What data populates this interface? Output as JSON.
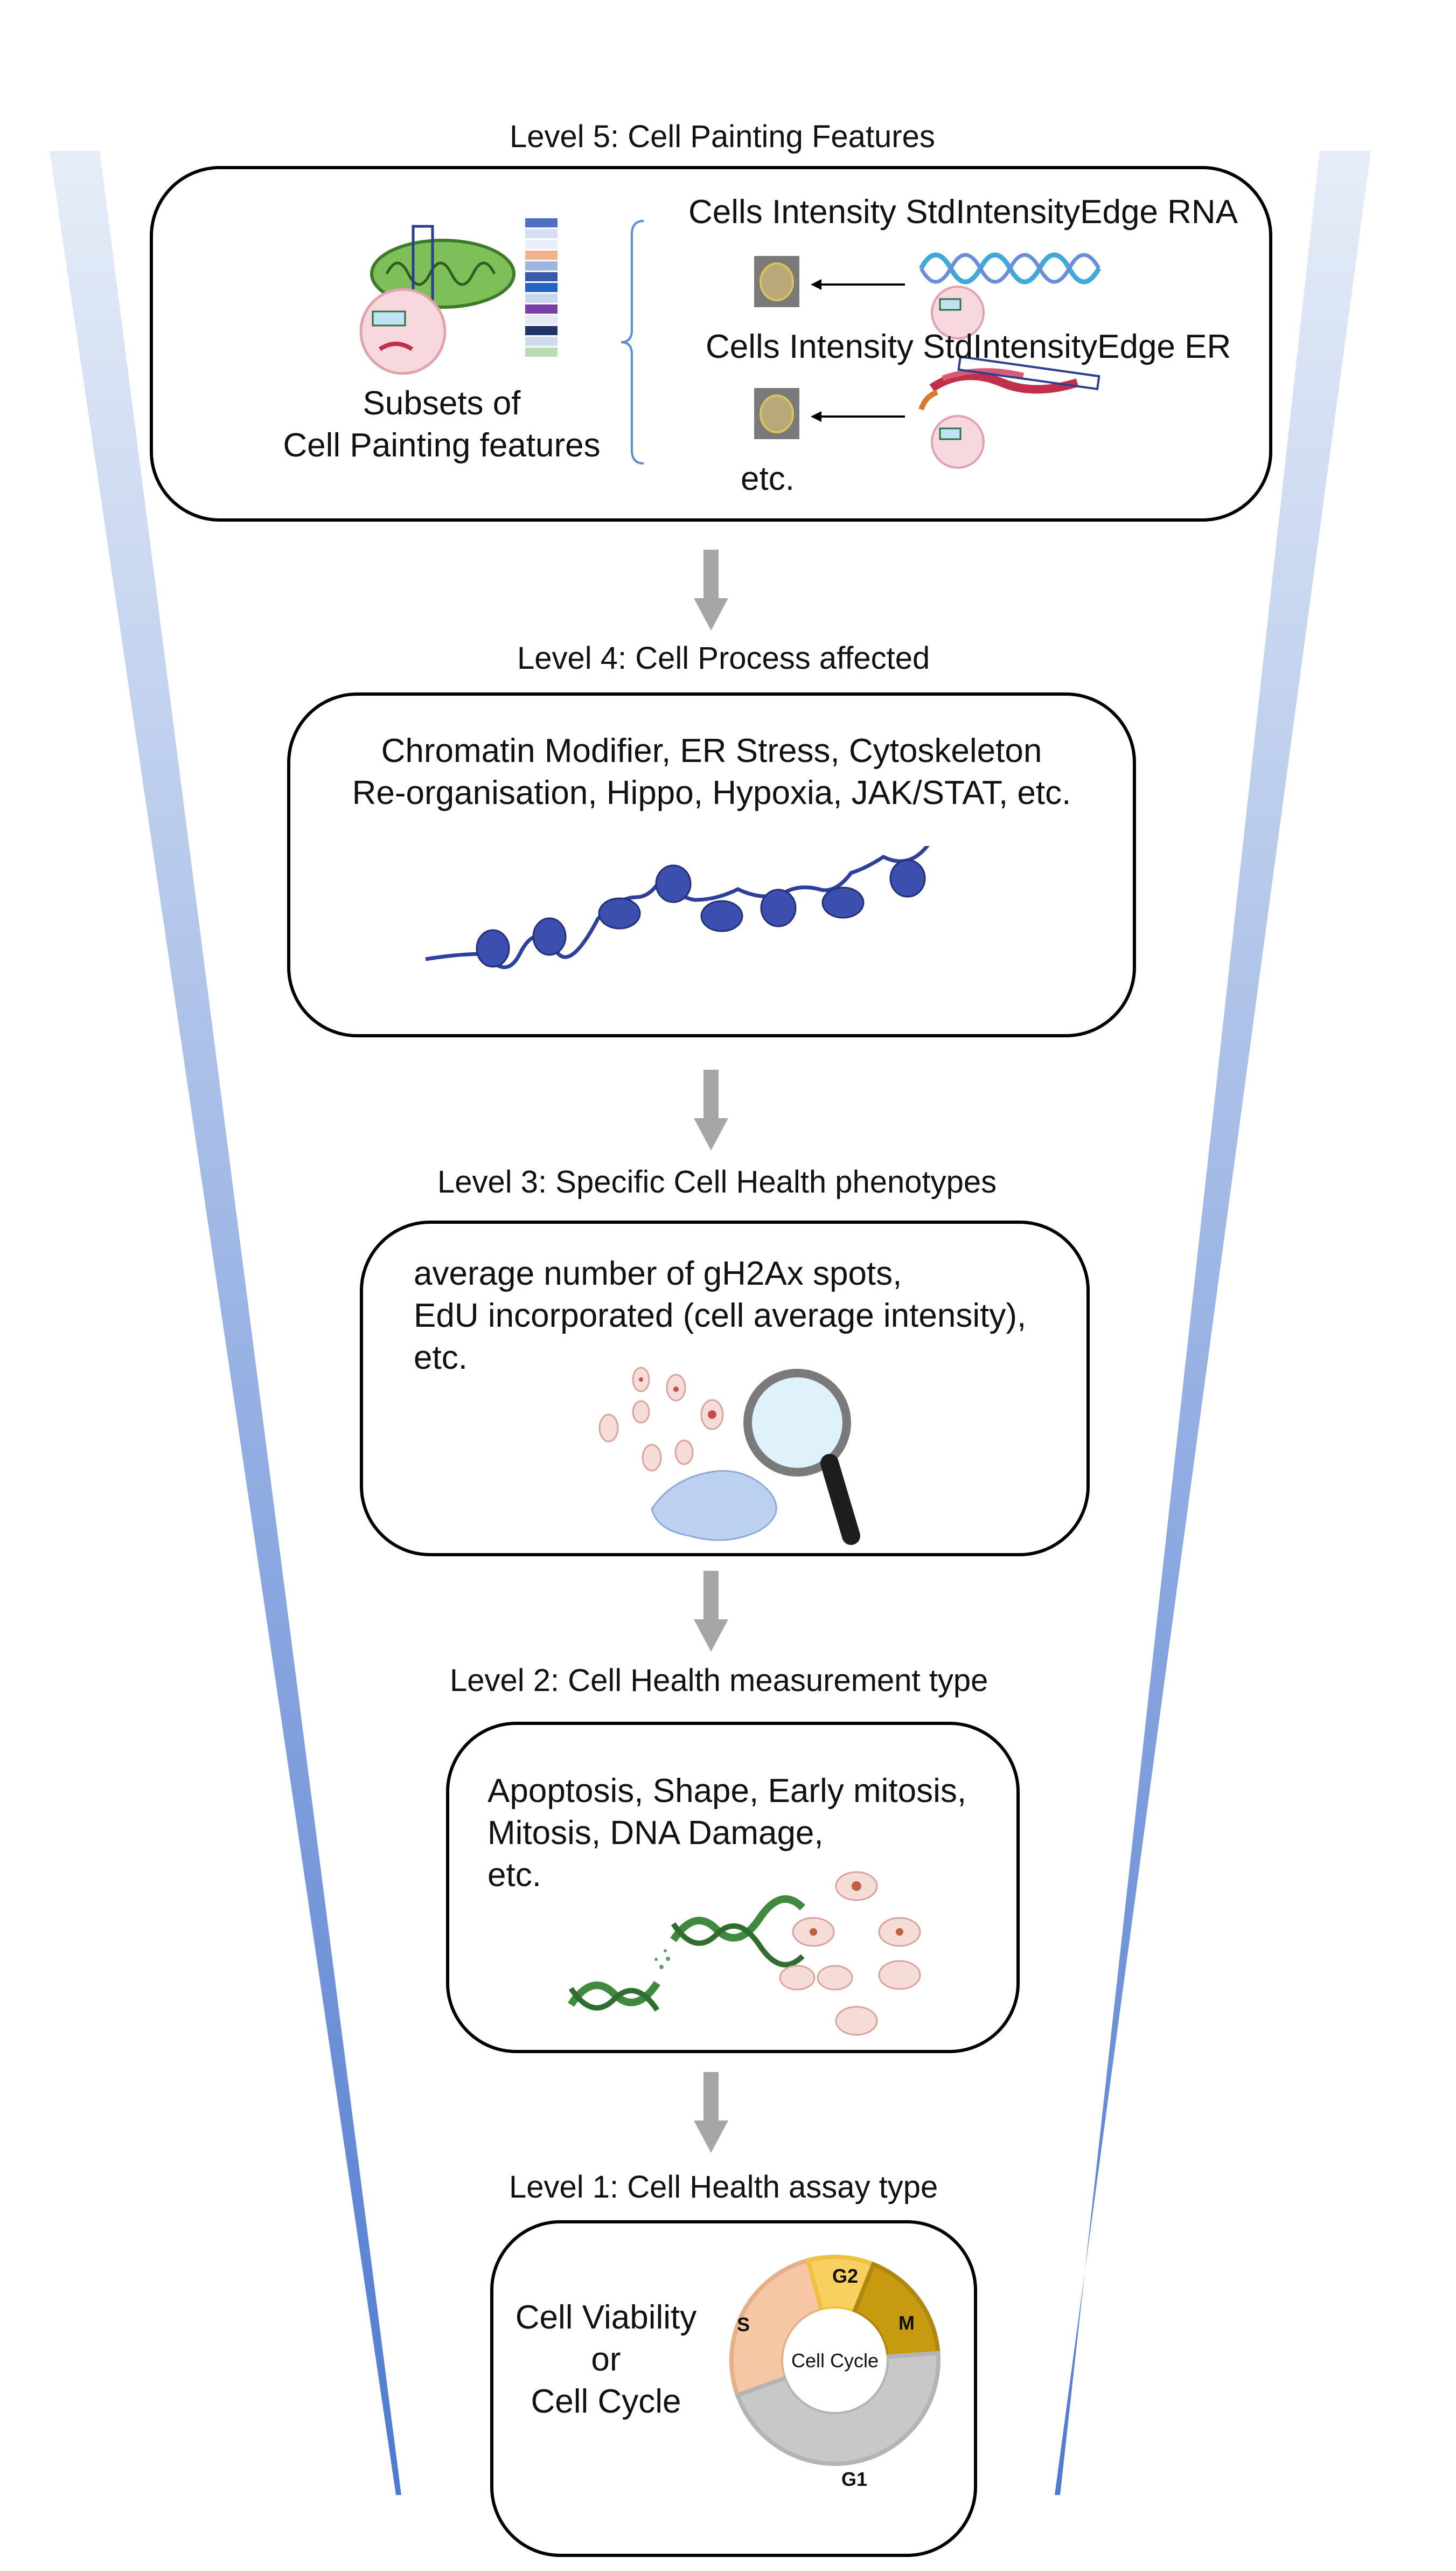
{
  "levels": [
    {
      "title": "Level 5: Cell Painting Features",
      "subset_label": [
        "Subsets of",
        "Cell Painting features"
      ],
      "features": [
        "Cells Intensity StdIntensityEdge RNA",
        "Cells Intensity StdIntensityEdge ER"
      ],
      "more": "etc."
    },
    {
      "title": "Level 4: Cell Process affected",
      "lines": [
        "Chromatin Modifier, ER Stress, Cytoskeleton",
        "Re-organisation, Hippo, Hypoxia, JAK/STAT, etc."
      ]
    },
    {
      "title": "Level 3: Specific Cell Health phenotypes",
      "lines": [
        "average number of gH2Ax spots,",
        "EdU incorporated (cell average intensity),",
        "etc."
      ]
    },
    {
      "title": "Level 2: Cell Health measurement type",
      "lines": [
        "Apoptosis, Shape, Early mitosis,",
        "Mitosis, DNA Damage,",
        "etc."
      ]
    },
    {
      "title": "Level 1: Cell Health assay type",
      "lines": [
        "Cell Viability",
        "or",
        "Cell Cycle"
      ],
      "cycle": {
        "center": "Cell Cycle",
        "phases": [
          {
            "label": "S",
            "color": "#f7c6a5"
          },
          {
            "label": "G2",
            "color": "#f7d060"
          },
          {
            "label": "M",
            "color": "#c79a10"
          },
          {
            "label": "G1",
            "color": "#c8c8c8"
          }
        ]
      }
    }
  ],
  "colors": {
    "funnel_dark": "#4f7ad0",
    "funnel_light": "#e6edf8",
    "arrow": "#a6a6a6",
    "nucleosome": "#3d4fae"
  }
}
